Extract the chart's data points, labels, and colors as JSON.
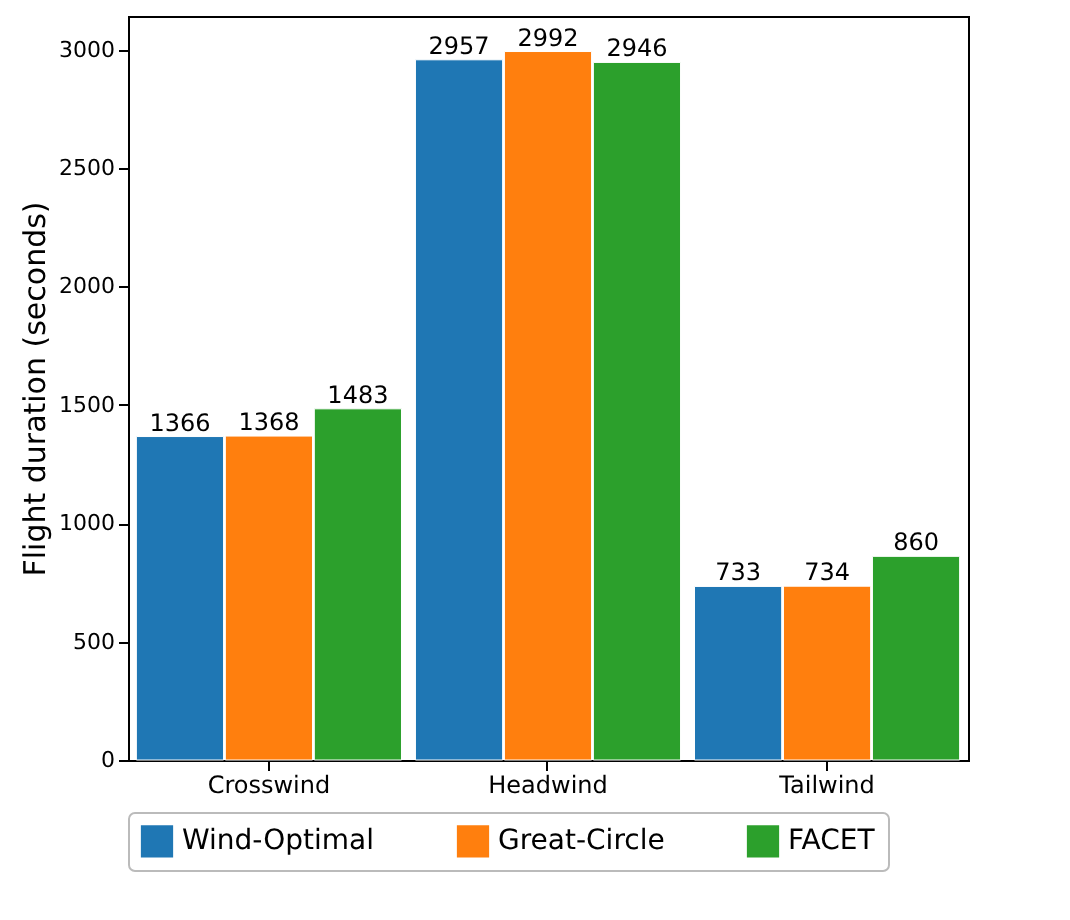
{
  "chart_data": {
    "type": "bar",
    "ylabel": "Flight duration (seconds)",
    "categories": [
      "Crosswind",
      "Headwind",
      "Tailwind"
    ],
    "series": [
      {
        "name": "Wind-Optimal",
        "color": "#1f77b4",
        "values": [
          1366,
          2957,
          733
        ]
      },
      {
        "name": "Great-Circle",
        "color": "#ff7f0e",
        "values": [
          1368,
          2992,
          734
        ]
      },
      {
        "name": "FACET",
        "color": "#2ca02c",
        "values": [
          1483,
          2946,
          860
        ]
      }
    ],
    "ylim": [
      0,
      3142
    ],
    "yticks": [
      0,
      500,
      1000,
      1500,
      2000,
      2500,
      3000
    ],
    "data_labels": true,
    "legend": "bottom",
    "grid": false
  }
}
